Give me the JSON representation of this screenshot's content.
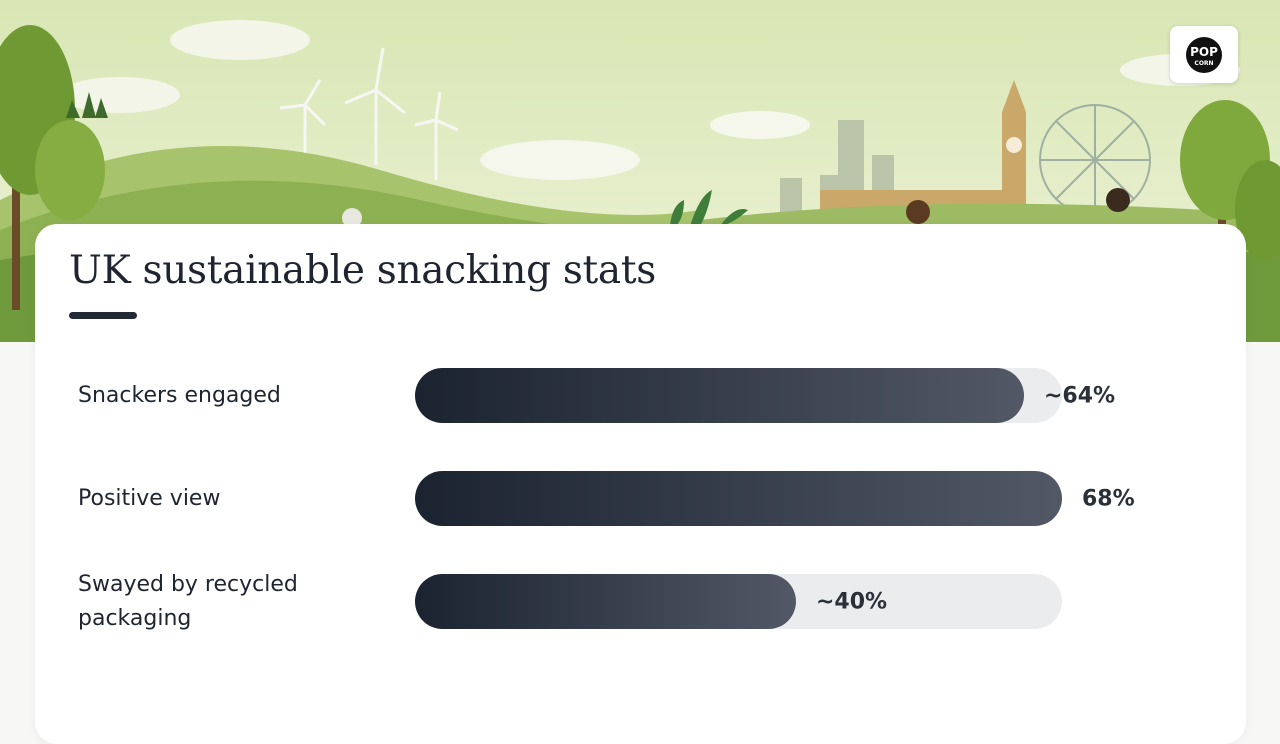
{
  "brand": {
    "logo_text_top": "POP",
    "logo_text_bottom": "CORN"
  },
  "chart_data": {
    "type": "bar",
    "orientation": "horizontal",
    "title": "UK sustainable snacking stats",
    "xlim": [
      0,
      68
    ],
    "categories": [
      "Snackers engaged",
      "Positive view",
      "Swayed by recycled packaging"
    ],
    "values": [
      64,
      68,
      40
    ],
    "data_labels": [
      "~64%",
      "68%",
      "~40%"
    ]
  },
  "colors": {
    "bar_dark": "#1c2330",
    "bar_light": "#525866",
    "track": "#ebecee",
    "text": "#1f2430"
  }
}
